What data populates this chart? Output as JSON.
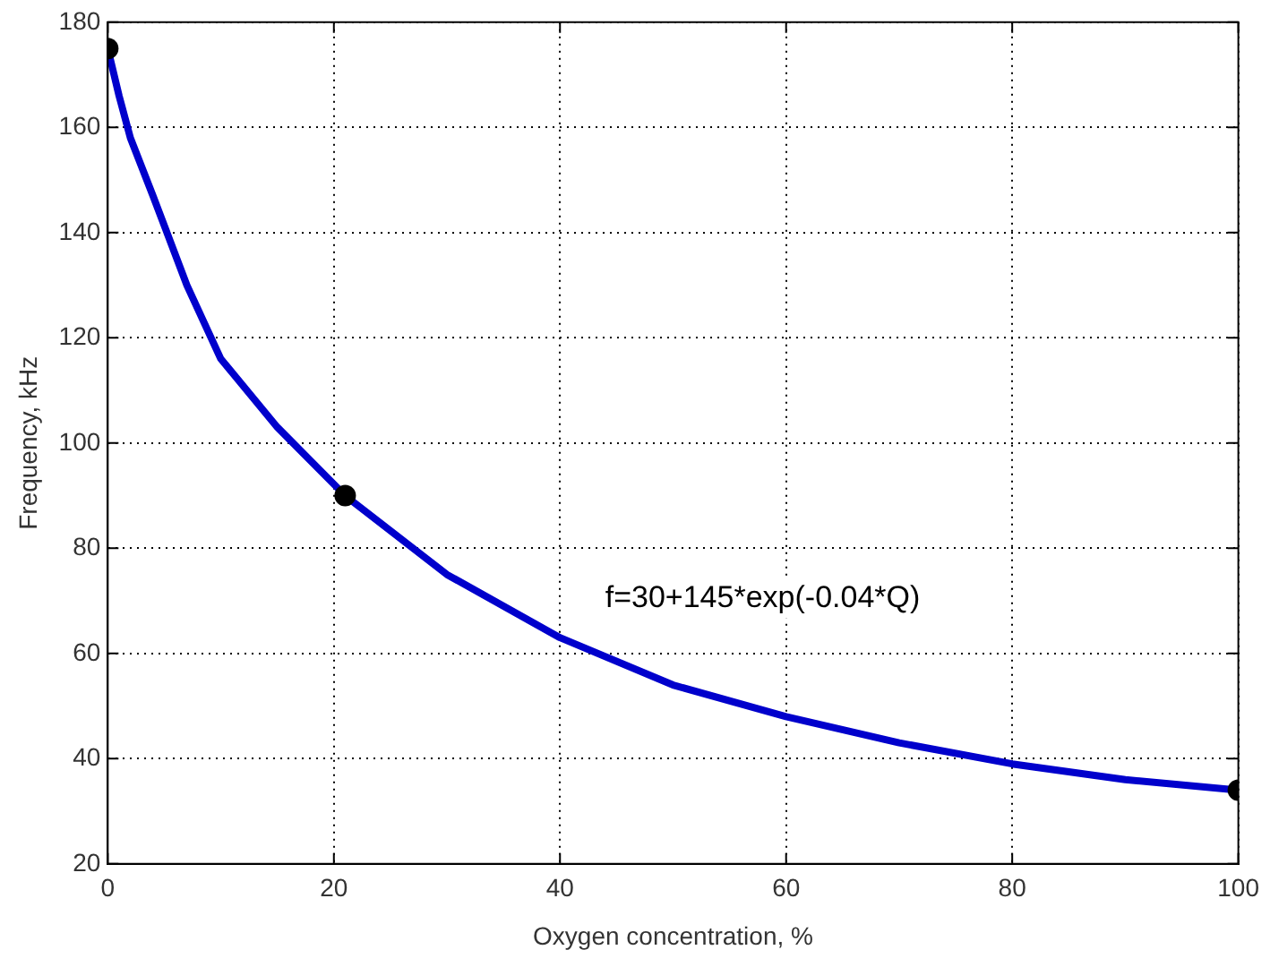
{
  "chart_data": {
    "type": "line",
    "xlabel": "Oxygen concentration, %",
    "ylabel": "Frequency, kHz",
    "xlim": [
      0,
      100
    ],
    "ylim": [
      20,
      180
    ],
    "xticks": [
      0,
      20,
      40,
      60,
      80,
      100
    ],
    "yticks": [
      20,
      40,
      60,
      80,
      100,
      120,
      140,
      160,
      180
    ],
    "grid": true,
    "line_style": "solid",
    "annotations": [
      "f=30+145*exp(-0.04*Q)"
    ],
    "series": [
      {
        "type": "line",
        "color": "#0000cc",
        "marker": "none",
        "x": [
          0,
          1,
          2,
          4,
          7,
          10,
          15,
          21,
          30,
          40,
          50,
          60,
          70,
          80,
          90,
          100
        ],
        "values": [
          175,
          166,
          158,
          147,
          130,
          116,
          103,
          90,
          75,
          63,
          54,
          48,
          43,
          39,
          36,
          34
        ]
      },
      {
        "type": "scatter",
        "color": "#000000",
        "marker": "circle",
        "x": [
          0,
          21,
          100
        ],
        "values": [
          175,
          90,
          34
        ]
      }
    ]
  }
}
